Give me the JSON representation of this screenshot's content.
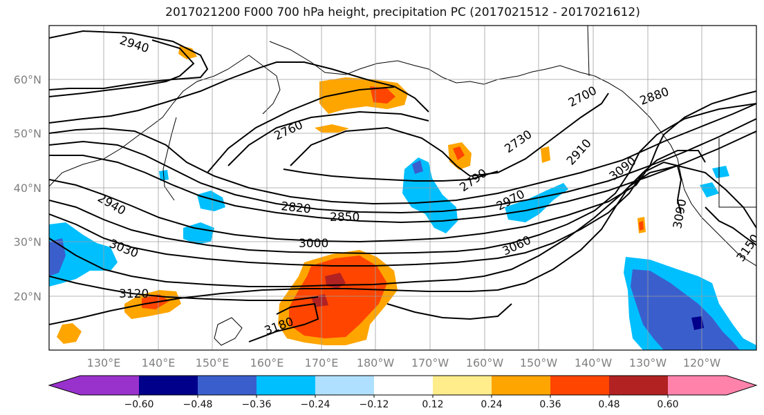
{
  "title": "2017021200 F000 700 hPa height, precipitation PC (2017021512 - 2017021612)",
  "map": {
    "lat_labels": [
      "60°N",
      "50°N",
      "40°N",
      "30°N",
      "20°N"
    ],
    "lon_labels": [
      "130°E",
      "140°E",
      "150°E",
      "160°E",
      "170°E",
      "180°W",
      "170°W",
      "160°W",
      "150°W",
      "140°W",
      "130°W",
      "120°W"
    ],
    "contour_labels": [
      "2940",
      "2760",
      "2700",
      "2880",
      "2730",
      "2910",
      "3090",
      "2790",
      "2970",
      "2820",
      "2850",
      "2940",
      "3000",
      "3030",
      "3060",
      "3090",
      "3120",
      "3180",
      "3150"
    ]
  },
  "colorbar": {
    "ticks": [
      "−0.60",
      "−0.48",
      "−0.36",
      "−0.24",
      "−0.12",
      "0.12",
      "0.24",
      "0.36",
      "0.48",
      "0.60"
    ],
    "colors": [
      "#9932cc",
      "#00008b",
      "#3a5fcd",
      "#00bfff",
      "#b0e0ff",
      "#ffffff",
      "#ffec8b",
      "#ffa500",
      "#ff4500",
      "#b22222",
      "#ff82ab"
    ]
  }
}
